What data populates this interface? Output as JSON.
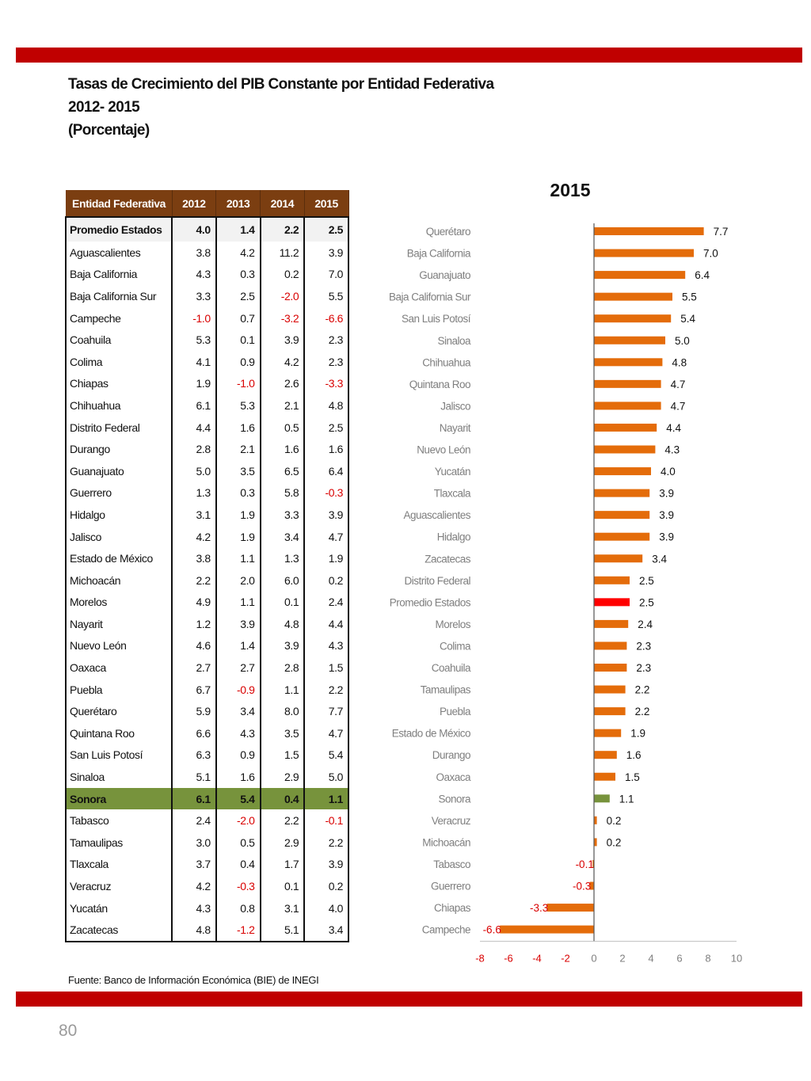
{
  "titles": {
    "main": "Tasas de Crecimiento del PIB Constante por Entidad Federativa",
    "period": "2012- 2015",
    "unit": "(Porcentaje)"
  },
  "table": {
    "headers": [
      "Entidad Federativa",
      "2012",
      "2013",
      "2014",
      "2015"
    ],
    "rows": [
      [
        "Promedio Estados",
        "4.0",
        "1.4",
        "2.2",
        "2.5"
      ],
      [
        "Aguascalientes",
        "3.8",
        "4.2",
        "11.2",
        "3.9"
      ],
      [
        "Baja California",
        "4.3",
        "0.3",
        "0.2",
        "7.0"
      ],
      [
        "Baja California Sur",
        "3.3",
        "2.5",
        "-2.0",
        "5.5"
      ],
      [
        "Campeche",
        "-1.0",
        "0.7",
        "-3.2",
        "-6.6"
      ],
      [
        "Coahuila",
        "5.3",
        "0.1",
        "3.9",
        "2.3"
      ],
      [
        "Colima",
        "4.1",
        "0.9",
        "4.2",
        "2.3"
      ],
      [
        "Chiapas",
        "1.9",
        "-1.0",
        "2.6",
        "-3.3"
      ],
      [
        "Chihuahua",
        "6.1",
        "5.3",
        "2.1",
        "4.8"
      ],
      [
        "Distrito Federal",
        "4.4",
        "1.6",
        "0.5",
        "2.5"
      ],
      [
        "Durango",
        "2.8",
        "2.1",
        "1.6",
        "1.6"
      ],
      [
        "Guanajuato",
        "5.0",
        "3.5",
        "6.5",
        "6.4"
      ],
      [
        "Guerrero",
        "1.3",
        "0.3",
        "5.8",
        "-0.3"
      ],
      [
        "Hidalgo",
        "3.1",
        "1.9",
        "3.3",
        "3.9"
      ],
      [
        "Jalisco",
        "4.2",
        "1.9",
        "3.4",
        "4.7"
      ],
      [
        "Estado de México",
        "3.8",
        "1.1",
        "1.3",
        "1.9"
      ],
      [
        "Michoacán",
        "2.2",
        "2.0",
        "6.0",
        "0.2"
      ],
      [
        "Morelos",
        "4.9",
        "1.1",
        "0.1",
        "2.4"
      ],
      [
        "Nayarit",
        "1.2",
        "3.9",
        "4.8",
        "4.4"
      ],
      [
        "Nuevo León",
        "4.6",
        "1.4",
        "3.9",
        "4.3"
      ],
      [
        "Oaxaca",
        "2.7",
        "2.7",
        "2.8",
        "1.5"
      ],
      [
        "Puebla",
        "6.7",
        "-0.9",
        "1.1",
        "2.2"
      ],
      [
        "Querétaro",
        "5.9",
        "3.4",
        "8.0",
        "7.7"
      ],
      [
        "Quintana Roo",
        "6.6",
        "4.3",
        "3.5",
        "4.7"
      ],
      [
        "San Luis Potosí",
        "6.3",
        "0.9",
        "1.5",
        "5.4"
      ],
      [
        "Sinaloa",
        "5.1",
        "1.6",
        "2.9",
        "5.0"
      ],
      [
        "Sonora",
        "6.1",
        "5.4",
        "0.4",
        "1.1"
      ],
      [
        "Tabasco",
        "2.4",
        "-2.0",
        "2.2",
        "-0.1"
      ],
      [
        "Tamaulipas",
        "3.0",
        "0.5",
        "2.9",
        "2.2"
      ],
      [
        "Tlaxcala",
        "3.7",
        "0.4",
        "1.7",
        "3.9"
      ],
      [
        "Veracruz",
        "4.2",
        "-0.3",
        "0.1",
        "0.2"
      ],
      [
        "Yucatán",
        "4.3",
        "0.8",
        "3.1",
        "4.0"
      ],
      [
        "Zacatecas",
        "4.8",
        "-1.2",
        "5.1",
        "3.4"
      ]
    ],
    "highlight_row": "Sonora",
    "average_row": "Promedio Estados",
    "header_color": "#7b3e11",
    "highlight_color": "#77933c",
    "negative_color": "#d90000"
  },
  "chart_data": {
    "type": "bar",
    "orientation": "horizontal",
    "title": "2015",
    "categories": [
      "Querétaro",
      "Baja California",
      "Guanajuato",
      "Baja California Sur",
      "San Luis Potosí",
      "Sinaloa",
      "Chihuahua",
      "Quintana Roo",
      "Jalisco",
      "Nayarit",
      "Nuevo León",
      "Yucatán",
      "Tlaxcala",
      "Aguascalientes",
      "Hidalgo",
      "Zacatecas",
      "Distrito Federal",
      "Promedio Estados",
      "Morelos",
      "Colima",
      "Coahuila",
      "Tamaulipas",
      "Puebla",
      "Estado de México",
      "Durango",
      "Oaxaca",
      "Sonora",
      "Veracruz",
      "Michoacán",
      "Tabasco",
      "Guerrero",
      "Chiapas",
      "Campeche"
    ],
    "values": [
      7.7,
      7.0,
      6.4,
      5.5,
      5.4,
      5.0,
      4.8,
      4.7,
      4.7,
      4.4,
      4.3,
      4.0,
      3.9,
      3.9,
      3.9,
      3.4,
      2.5,
      2.5,
      2.4,
      2.3,
      2.3,
      2.2,
      2.2,
      1.9,
      1.6,
      1.5,
      1.1,
      0.2,
      0.2,
      -0.1,
      -0.3,
      -3.3,
      -6.6
    ],
    "value_labels": [
      "7.7",
      "7.0",
      "6.4",
      "5.5",
      "5.4",
      "5.0",
      "4.8",
      "4.7",
      "4.7",
      "4.4",
      "4.3",
      "4.0",
      "3.9",
      "3.9",
      "3.9",
      "3.4",
      "2.5",
      "2.5",
      "2.4",
      "2.3",
      "2.3",
      "2.2",
      "2.2",
      "1.9",
      "1.6",
      "1.5",
      "1.1",
      "0.2",
      "0.2",
      "-0.1",
      "-0.3",
      "-3.3",
      "-6.6"
    ],
    "xlim": [
      -8,
      10
    ],
    "x_ticks": [
      "-8",
      "-6",
      "-4",
      "-2",
      "0",
      "2",
      "4",
      "6",
      "8",
      "10"
    ],
    "grid": false,
    "colors": {
      "default": "#e46c0a",
      "average": "#ff0000",
      "highlight": "#77933c",
      "negative_tick": "#d90000",
      "positive_tick": "#7f7f7f",
      "axis": "#555555"
    },
    "average_category": "Promedio Estados",
    "highlight_category": "Sonora"
  },
  "footer": {
    "source": "Fuente: Banco de Información Económica (BIE) de INEGI",
    "page_number": "80"
  }
}
